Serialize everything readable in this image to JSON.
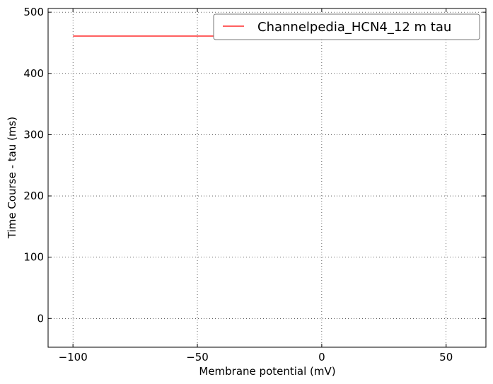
{
  "chart_data": {
    "type": "line",
    "xlabel": "Membrane potential (mV)",
    "ylabel": "Time Course - tau (ms)",
    "xlim": [
      -110,
      66
    ],
    "ylim": [
      -47,
      506
    ],
    "xticks": [
      -100,
      -50,
      0,
      50
    ],
    "xtick_labels": [
      "−100",
      "−50",
      "0",
      "50"
    ],
    "yticks": [
      0,
      100,
      200,
      300,
      400,
      500
    ],
    "ytick_labels": [
      "0",
      "100",
      "200",
      "300",
      "400",
      "500"
    ],
    "grid": true,
    "legend_position": "top-right",
    "series": [
      {
        "name": "Channelpedia_HCN4_12 m tau",
        "color": "#ff0000",
        "x": [
          -100,
          60
        ],
        "y": [
          461,
          461
        ]
      }
    ]
  }
}
